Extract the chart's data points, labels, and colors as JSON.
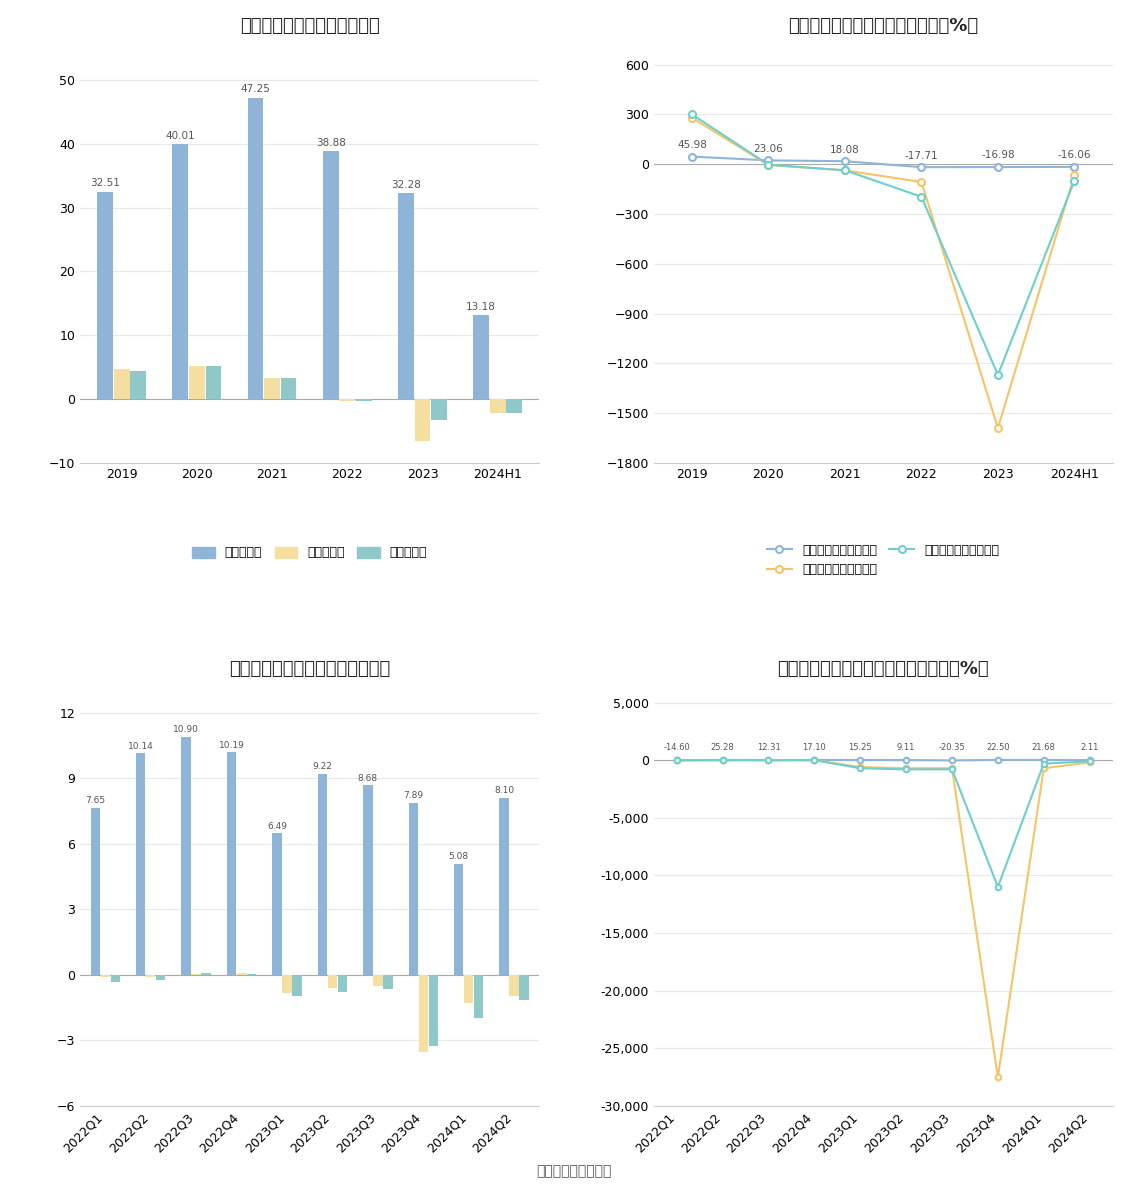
{
  "annual_revenue": [
    32.51,
    40.01,
    47.25,
    38.88,
    32.28,
    13.18
  ],
  "annual_gui_mu": [
    4.67,
    5.21,
    3.31,
    -0.26,
    -6.54,
    -2.12
  ],
  "annual_kfei": [
    4.38,
    5.15,
    3.27,
    -0.28,
    -3.21,
    -2.19
  ],
  "annual_years": [
    "2019",
    "2020",
    "2021",
    "2022",
    "2023",
    "2024H1"
  ],
  "annual_title": "历年营收、净利情况（亿元）",
  "annual_rev_labels": [
    "32.51",
    "40.01",
    "47.25",
    "38.88",
    "32.28",
    "13.18"
  ],
  "growth_revenue": [
    45.98,
    23.06,
    18.08,
    -17.71,
    -16.98,
    -16.06
  ],
  "growth_guimu": [
    280.0,
    -5.0,
    -37.0,
    -107.0,
    -1590.0,
    -67.5
  ],
  "growth_kfei": [
    300.0,
    -3.0,
    -36.5,
    -196.0,
    -1270.0,
    -100.0
  ],
  "growth_years": [
    "2019",
    "2020",
    "2021",
    "2022",
    "2023",
    "2024H1"
  ],
  "growth_title": "历年营收、净利同比增长率情况（%）",
  "growth_labels": [
    "45.98",
    "23.06",
    "18.08",
    "-17.71",
    "-16.98",
    "-16.06"
  ],
  "q_revenue": [
    7.65,
    10.14,
    10.9,
    10.19,
    6.49,
    9.22,
    8.68,
    7.89,
    5.08,
    8.1
  ],
  "q_guimu": [
    -0.12,
    -0.08,
    0.05,
    0.07,
    -0.82,
    -0.62,
    -0.52,
    -3.52,
    -1.28,
    -0.98
  ],
  "q_kfei": [
    -0.31,
    -0.22,
    0.08,
    0.05,
    -0.98,
    -0.78,
    -0.65,
    -3.28,
    -1.98,
    -1.15
  ],
  "q_labels": [
    "2022Q1",
    "2022Q2",
    "2022Q3",
    "2022Q4",
    "2023Q1",
    "2023Q2",
    "2023Q3",
    "2023Q4",
    "2024Q1",
    "2024Q2"
  ],
  "q_title": "营收、净利季度变动情况（亿元）",
  "q_rev_labels": [
    "7.65",
    "10.14",
    "10.90",
    "10.19",
    "6.49",
    "9.22",
    "8.68",
    "7.89",
    "5.08",
    "8.10"
  ],
  "qg_revenue": [
    -14.6,
    25.28,
    12.31,
    17.1,
    15.25,
    9.11,
    -20.35,
    22.5,
    21.68,
    2.11
  ],
  "qg_guimu": [
    -2.0,
    -3.0,
    -2.0,
    -1.5,
    -600.0,
    -700.0,
    -700.0,
    -27500.0,
    -700.0,
    -200.0
  ],
  "qg_kfei": [
    -2.5,
    -3.5,
    -2.5,
    -1.0,
    -700.0,
    -800.0,
    -800.0,
    -11000.0,
    -300.0,
    -100.0
  ],
  "qg_labels": [
    "2022Q1",
    "2022Q2",
    "2022Q3",
    "2022Q4",
    "2023Q1",
    "2023Q2",
    "2023Q3",
    "2023Q4",
    "2024Q1",
    "2024Q2"
  ],
  "qg_title": "营收、净利同比增长率季度变动情况（%）",
  "qg_rev_labels": [
    "-14.60",
    "25.28",
    "12.31",
    "17.10",
    "15.25",
    "9.11",
    "-20.35",
    "22.50",
    "21.68",
    "2.11"
  ],
  "color_blue": "#8EB4D8",
  "color_yellow": "#F5DFA0",
  "color_teal": "#8EC8C8",
  "color_line_blue": "#8EB4D8",
  "color_line_yellow": "#F5C466",
  "color_line_teal": "#6ECECE",
  "bg_color": "#FFFFFF",
  "legend_revenue": "营业总收入",
  "legend_guimu": "归母净利润",
  "legend_kfei": "才非净利润",
  "legend_rev_growth": "营业总收入同比增长率",
  "legend_guimu_growth": "归母净利润同比增长率",
  "legend_kfei_growth": "才非净利润同比增长率",
  "source": "数据来源：恒生聚源"
}
